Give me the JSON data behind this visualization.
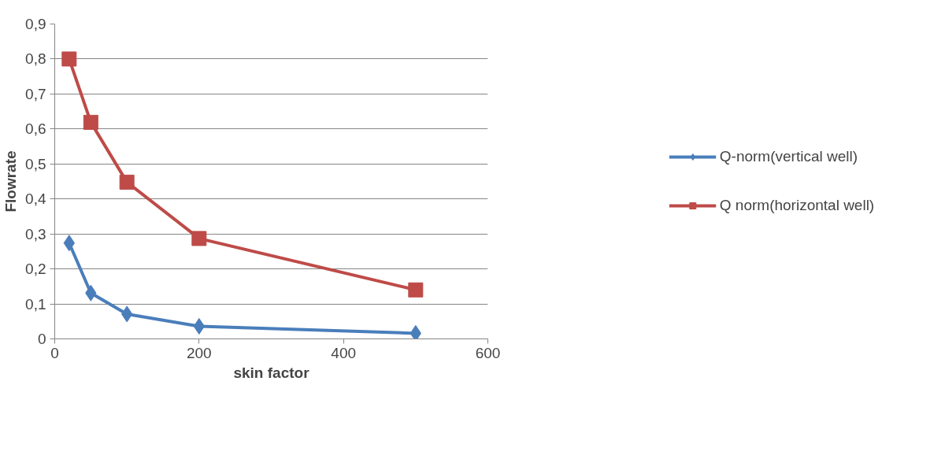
{
  "chart_data": {
    "type": "line",
    "xlabel": "skin factor",
    "ylabel": "Flowrate",
    "x": [
      20,
      50,
      100,
      200,
      500
    ],
    "series": [
      {
        "name": "Q-norm(vertical well)",
        "color": "#4a7ebb",
        "marker": "diamond",
        "values": [
          0.274,
          0.131,
          0.071,
          0.036,
          0.016
        ]
      },
      {
        "name": "Q norm(horizontal well)",
        "color": "#be4b48",
        "marker": "square",
        "values": [
          0.8,
          0.619,
          0.448,
          0.287,
          0.14
        ]
      }
    ],
    "xlim": [
      0,
      600
    ],
    "xticks": [
      0,
      200,
      400,
      600
    ],
    "ylim": [
      0,
      0.9
    ],
    "yticks": [
      0,
      {
        "value": 0.1,
        "label": "0,1"
      },
      {
        "value": 0.2,
        "label": "0,2"
      },
      {
        "value": 0.3,
        "label": "0,3"
      },
      {
        "value": 0.4,
        "label": "0,4"
      },
      {
        "value": 0.5,
        "label": "0,5"
      },
      {
        "value": 0.6,
        "label": "0,6"
      },
      {
        "value": 0.7,
        "label": "0,7"
      },
      {
        "value": 0.8,
        "label": "0,8"
      },
      {
        "value": 0.9,
        "label": "0,9"
      }
    ],
    "grid": "y",
    "legend": "right",
    "line_style": "solid"
  }
}
